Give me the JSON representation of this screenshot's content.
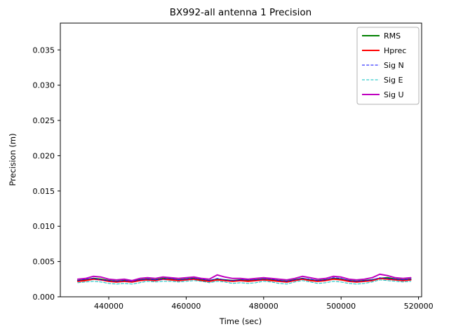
{
  "figure": {
    "background": "#ffffff"
  },
  "chart_data": {
    "type": "line",
    "title": "BX992-all antenna 1 Precision",
    "xlabel": "Time (sec)",
    "ylabel": "Precision (m)",
    "xlim": [
      427500,
      520800
    ],
    "ylim": [
      0,
      0.0388
    ],
    "x_ticks": [
      440000,
      460000,
      480000,
      500000,
      520000
    ],
    "y_ticks": [
      0.0,
      0.005,
      0.01,
      0.015,
      0.02,
      0.025,
      0.03,
      0.035
    ],
    "grid": false,
    "legend_position": "upper right",
    "x": [
      432000,
      434000,
      436000,
      438000,
      440000,
      442000,
      444000,
      446000,
      448000,
      450000,
      452000,
      454000,
      456000,
      458000,
      460000,
      462000,
      464000,
      466000,
      468000,
      470000,
      472000,
      474000,
      476000,
      478000,
      480000,
      482000,
      484000,
      486000,
      488000,
      490000,
      492000,
      494000,
      496000,
      498000,
      500000,
      502000,
      504000,
      506000,
      508000,
      510000,
      512000,
      514000,
      516000,
      518000
    ],
    "series": [
      {
        "name": "RMS",
        "color": "#008000",
        "dash": "solid",
        "width": 2,
        "values": [
          0.0023,
          0.0024,
          0.0026,
          0.0025,
          0.0023,
          0.0022,
          0.0023,
          0.0022,
          0.0024,
          0.0025,
          0.0024,
          0.0026,
          0.0025,
          0.0024,
          0.0025,
          0.0026,
          0.0024,
          0.0023,
          0.0025,
          0.0024,
          0.0023,
          0.0024,
          0.0023,
          0.0024,
          0.0025,
          0.0024,
          0.0023,
          0.0022,
          0.0024,
          0.0026,
          0.0024,
          0.0023,
          0.0024,
          0.0026,
          0.0025,
          0.0023,
          0.0022,
          0.0023,
          0.0024,
          0.0026,
          0.0027,
          0.0025,
          0.0024,
          0.0025
        ]
      },
      {
        "name": "Hprec",
        "color": "#ff0000",
        "dash": "solid",
        "width": 2,
        "values": [
          0.0022,
          0.0023,
          0.0025,
          0.0024,
          0.0022,
          0.0021,
          0.0022,
          0.0021,
          0.0023,
          0.0024,
          0.0023,
          0.0025,
          0.0024,
          0.0023,
          0.0024,
          0.0025,
          0.0023,
          0.0022,
          0.0024,
          0.0023,
          0.0022,
          0.0023,
          0.0022,
          0.0023,
          0.0024,
          0.0023,
          0.0022,
          0.0021,
          0.0023,
          0.0025,
          0.0023,
          0.0022,
          0.0023,
          0.0025,
          0.0024,
          0.0022,
          0.0021,
          0.0022,
          0.0023,
          0.0026,
          0.0025,
          0.0024,
          0.0023,
          0.0024
        ]
      },
      {
        "name": "Sig N",
        "color": "#0000ff",
        "dash": "dashed",
        "width": 1,
        "values": [
          0.0023,
          0.0025,
          0.0026,
          0.0024,
          0.0023,
          0.0022,
          0.0023,
          0.0022,
          0.0024,
          0.0025,
          0.0024,
          0.0025,
          0.0026,
          0.0024,
          0.0025,
          0.0026,
          0.0025,
          0.0023,
          0.0026,
          0.0024,
          0.0023,
          0.0024,
          0.0024,
          0.0024,
          0.0025,
          0.0025,
          0.0023,
          0.0022,
          0.0024,
          0.0026,
          0.0025,
          0.0023,
          0.0024,
          0.0027,
          0.0026,
          0.0023,
          0.0022,
          0.0023,
          0.0024,
          0.0027,
          0.0026,
          0.0025,
          0.0024,
          0.0025
        ]
      },
      {
        "name": "Sig E",
        "color": "#00bfbf",
        "dash": "dashed",
        "width": 1,
        "values": [
          0.002,
          0.0021,
          0.0022,
          0.0021,
          0.0019,
          0.0018,
          0.0019,
          0.0018,
          0.002,
          0.0022,
          0.0021,
          0.0022,
          0.0022,
          0.0021,
          0.0022,
          0.0023,
          0.0022,
          0.002,
          0.0022,
          0.0021,
          0.0019,
          0.002,
          0.0019,
          0.002,
          0.0022,
          0.0021,
          0.0019,
          0.0018,
          0.0021,
          0.0023,
          0.0021,
          0.0019,
          0.002,
          0.0022,
          0.0021,
          0.0019,
          0.0018,
          0.0019,
          0.0021,
          0.0024,
          0.0023,
          0.0022,
          0.0021,
          0.0022
        ]
      },
      {
        "name": "Sig U",
        "color": "#bf00bf",
        "dash": "solid",
        "width": 2,
        "values": [
          0.0025,
          0.0026,
          0.0029,
          0.0028,
          0.0025,
          0.0024,
          0.0025,
          0.0023,
          0.0026,
          0.0027,
          0.0026,
          0.0028,
          0.0027,
          0.0026,
          0.0027,
          0.0028,
          0.0026,
          0.0025,
          0.0031,
          0.0028,
          0.0026,
          0.0026,
          0.0025,
          0.0026,
          0.0027,
          0.0026,
          0.0025,
          0.0024,
          0.0026,
          0.0029,
          0.0027,
          0.0025,
          0.0026,
          0.0029,
          0.0028,
          0.0025,
          0.0024,
          0.0025,
          0.0027,
          0.0032,
          0.003,
          0.0027,
          0.0026,
          0.0027
        ]
      }
    ]
  }
}
